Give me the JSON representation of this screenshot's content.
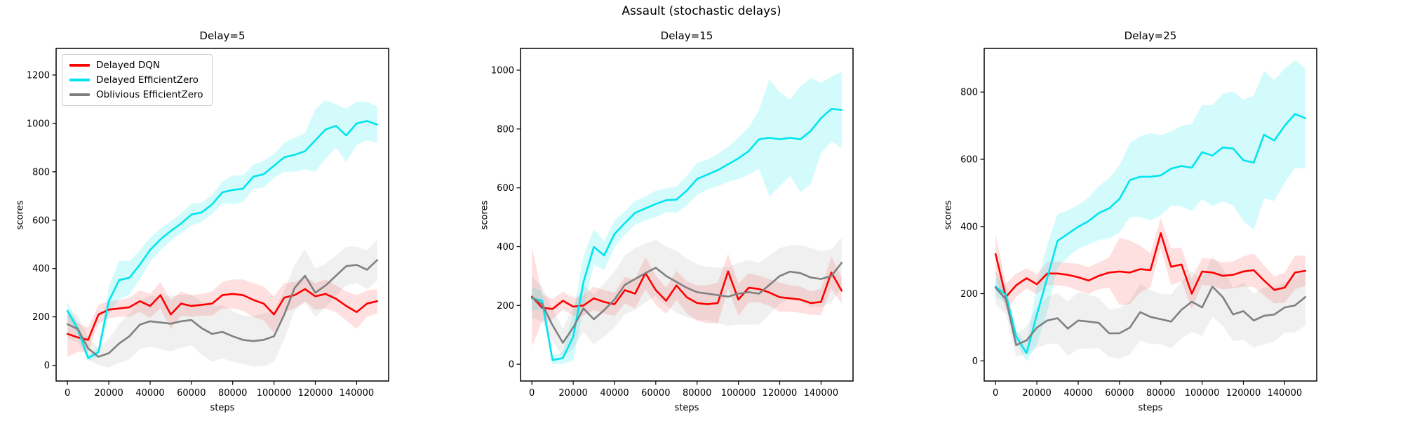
{
  "figure": {
    "title": "Assault (stochastic delays)"
  },
  "legend": {
    "items": [
      {
        "label": "Delayed DQN",
        "color": "#ff0000"
      },
      {
        "label": "Delayed EfficientZero",
        "color": "#00e5ee"
      },
      {
        "label": "Oblivious EfficientZero",
        "color": "#808080"
      }
    ]
  },
  "chart_data": [
    {
      "type": "line",
      "title": "Delay=5",
      "xlabel": "steps",
      "ylabel": "scores",
      "xlim": [
        -5500,
        155500
      ],
      "ylim": [
        -65,
        1310
      ],
      "xticks": [
        0,
        20000,
        40000,
        60000,
        80000,
        100000,
        120000,
        140000
      ],
      "yticks": [
        0,
        200,
        400,
        600,
        800,
        1000,
        1200
      ],
      "legend_position": "upper-left",
      "grid": false,
      "x": [
        0,
        5000,
        10000,
        15000,
        20000,
        25000,
        30000,
        35000,
        40000,
        45000,
        50000,
        55000,
        60000,
        65000,
        70000,
        75000,
        80000,
        85000,
        90000,
        95000,
        100000,
        105000,
        110000,
        115000,
        120000,
        125000,
        130000,
        135000,
        140000,
        145000,
        150000
      ],
      "series": [
        {
          "name": "Delayed DQN",
          "color": "#ff0000",
          "band_opacity": 0.12,
          "values": [
            130,
            115,
            105,
            210,
            230,
            235,
            240,
            265,
            245,
            290,
            210,
            255,
            245,
            250,
            255,
            290,
            295,
            290,
            270,
            255,
            210,
            280,
            290,
            315,
            285,
            295,
            275,
            245,
            220,
            255,
            265
          ],
          "band": [
            95,
            60,
            50,
            40,
            35,
            35,
            40,
            45,
            50,
            55,
            60,
            50,
            45,
            45,
            50,
            55,
            60,
            65,
            70,
            70,
            75,
            60,
            55,
            50,
            55,
            60,
            55,
            60,
            70,
            55,
            50
          ]
        },
        {
          "name": "Delayed EfficientZero",
          "color": "#00e5ee",
          "band_opacity": 0.17,
          "values": [
            225,
            150,
            30,
            55,
            265,
            352,
            362,
            415,
            477,
            520,
            555,
            586,
            623,
            632,
            665,
            715,
            725,
            730,
            780,
            790,
            825,
            860,
            870,
            885,
            930,
            975,
            990,
            950,
            1000,
            1010,
            995
          ],
          "band": [
            35,
            25,
            12,
            20,
            60,
            80,
            70,
            60,
            50,
            45,
            40,
            40,
            45,
            40,
            40,
            45,
            60,
            55,
            50,
            55,
            50,
            60,
            70,
            75,
            130,
            120,
            90,
            110,
            90,
            80,
            75
          ]
        },
        {
          "name": "Oblivious EfficientZero",
          "color": "#808080",
          "band_opacity": 0.12,
          "values": [
            170,
            150,
            70,
            35,
            50,
            90,
            120,
            168,
            182,
            177,
            172,
            182,
            187,
            153,
            130,
            138,
            120,
            105,
            100,
            105,
            120,
            210,
            320,
            370,
            300,
            330,
            370,
            410,
            415,
            395,
            435
          ],
          "band": [
            60,
            55,
            45,
            35,
            60,
            80,
            95,
            100,
            105,
            110,
            115,
            110,
            105,
            110,
            115,
            110,
            105,
            100,
            105,
            110,
            105,
            100,
            95,
            110,
            100,
            90,
            85,
            80,
            75,
            80,
            85
          ]
        }
      ]
    },
    {
      "type": "line",
      "title": "Delay=15",
      "xlabel": "steps",
      "ylabel": "scores",
      "xlim": [
        -5500,
        155500
      ],
      "ylim": [
        -57,
        1074
      ],
      "xticks": [
        0,
        20000,
        40000,
        60000,
        80000,
        100000,
        120000,
        140000
      ],
      "yticks": [
        0,
        200,
        400,
        600,
        800,
        1000
      ],
      "legend_position": "none",
      "grid": false,
      "x": [
        0,
        5000,
        10000,
        15000,
        20000,
        25000,
        30000,
        35000,
        40000,
        45000,
        50000,
        55000,
        60000,
        65000,
        70000,
        75000,
        80000,
        85000,
        90000,
        95000,
        100000,
        105000,
        110000,
        115000,
        120000,
        125000,
        130000,
        135000,
        140000,
        145000,
        150000
      ],
      "series": [
        {
          "name": "Delayed DQN",
          "color": "#ff0000",
          "band_opacity": 0.12,
          "values": [
            230,
            192,
            188,
            216,
            196,
            200,
            224,
            212,
            204,
            252,
            240,
            310,
            252,
            216,
            268,
            228,
            208,
            204,
            208,
            316,
            220,
            260,
            256,
            244,
            228,
            224,
            220,
            208,
            212,
            312,
            250
          ],
          "band": [
            170,
            45,
            35,
            30,
            30,
            35,
            40,
            40,
            40,
            45,
            50,
            55,
            50,
            45,
            50,
            55,
            60,
            65,
            70,
            60,
            55,
            50,
            45,
            45,
            50,
            45,
            45,
            40,
            45,
            55,
            45
          ]
        },
        {
          "name": "Delayed EfficientZero",
          "color": "#00e5ee",
          "band_opacity": 0.17,
          "values": [
            224,
            216,
            14,
            21,
            93,
            280,
            399,
            370,
            443,
            480,
            515,
            530,
            545,
            558,
            560,
            590,
            630,
            645,
            660,
            680,
            700,
            725,
            765,
            770,
            765,
            770,
            765,
            793,
            837,
            868,
            865
          ],
          "band": [
            40,
            30,
            15,
            20,
            80,
            90,
            60,
            50,
            45,
            40,
            40,
            40,
            45,
            40,
            45,
            50,
            55,
            50,
            55,
            60,
            70,
            80,
            100,
            200,
            160,
            130,
            180,
            180,
            120,
            110,
            130
          ]
        },
        {
          "name": "Oblivious EfficientZero",
          "color": "#808080",
          "band_opacity": 0.12,
          "values": [
            228,
            204,
            133,
            73,
            125,
            190,
            153,
            184,
            220,
            270,
            290,
            310,
            328,
            300,
            280,
            260,
            245,
            240,
            235,
            230,
            240,
            245,
            240,
            270,
            300,
            315,
            310,
            295,
            290,
            300,
            345
          ],
          "band": [
            70,
            60,
            55,
            50,
            70,
            80,
            85,
            90,
            95,
            100,
            105,
            100,
            95,
            100,
            105,
            100,
            95,
            90,
            95,
            100,
            105,
            110,
            105,
            100,
            95,
            90,
            95,
            100,
            95,
            90,
            85
          ]
        }
      ]
    },
    {
      "type": "line",
      "title": "Delay=25",
      "xlabel": "steps",
      "ylabel": "scores",
      "xlim": [
        -5500,
        155500
      ],
      "ylim": [
        -60,
        930
      ],
      "xticks": [
        0,
        20000,
        40000,
        60000,
        80000,
        100000,
        120000,
        140000
      ],
      "yticks": [
        0,
        200,
        400,
        600,
        800
      ],
      "legend_position": "none",
      "grid": false,
      "x": [
        0,
        5000,
        10000,
        15000,
        20000,
        25000,
        30000,
        35000,
        40000,
        45000,
        50000,
        55000,
        60000,
        65000,
        70000,
        75000,
        80000,
        85000,
        90000,
        95000,
        100000,
        105000,
        110000,
        115000,
        120000,
        125000,
        130000,
        135000,
        140000,
        145000,
        150000
      ],
      "series": [
        {
          "name": "Delayed DQN",
          "color": "#ff0000",
          "band_opacity": 0.12,
          "values": [
            318,
            190,
            225,
            246,
            228,
            260,
            260,
            256,
            249,
            239,
            253,
            263,
            266,
            263,
            273,
            270,
            380,
            280,
            287,
            200,
            266,
            263,
            253,
            256,
            266,
            270,
            239,
            211,
            218,
            263,
            268
          ],
          "band": [
            60,
            40,
            35,
            30,
            30,
            35,
            35,
            35,
            40,
            40,
            40,
            45,
            100,
            95,
            70,
            50,
            45,
            55,
            50,
            45,
            40,
            40,
            40,
            40,
            45,
            50,
            45,
            40,
            45,
            50,
            45
          ]
        },
        {
          "name": "Delayed EfficientZero",
          "color": "#00e5ee",
          "band_opacity": 0.17,
          "values": [
            221,
            197,
            72,
            23,
            138,
            246,
            357,
            378,
            399,
            416,
            440,
            454,
            482,
            538,
            548,
            548,
            552,
            572,
            580,
            575,
            621,
            611,
            635,
            632,
            597,
            590,
            673,
            656,
            700,
            735,
            722
          ],
          "band": [
            30,
            25,
            20,
            25,
            90,
            100,
            80,
            70,
            65,
            70,
            80,
            90,
            100,
            110,
            120,
            130,
            120,
            110,
            120,
            130,
            140,
            150,
            160,
            170,
            180,
            200,
            190,
            180,
            170,
            160,
            150
          ]
        },
        {
          "name": "Oblivious EfficientZero",
          "color": "#808080",
          "band_opacity": 0.12,
          "values": [
            218,
            183,
            47,
            61,
            99,
            120,
            127,
            96,
            120,
            117,
            113,
            82,
            82,
            99,
            145,
            131,
            124,
            117,
            152,
            176,
            159,
            221,
            190,
            138,
            148,
            120,
            134,
            138,
            159,
            165,
            190
          ],
          "band": [
            50,
            45,
            35,
            40,
            60,
            70,
            75,
            80,
            85,
            80,
            75,
            70,
            75,
            80,
            85,
            80,
            75,
            80,
            85,
            90,
            85,
            90,
            85,
            80,
            85,
            80,
            85,
            80,
            75,
            80,
            85
          ]
        }
      ]
    }
  ]
}
